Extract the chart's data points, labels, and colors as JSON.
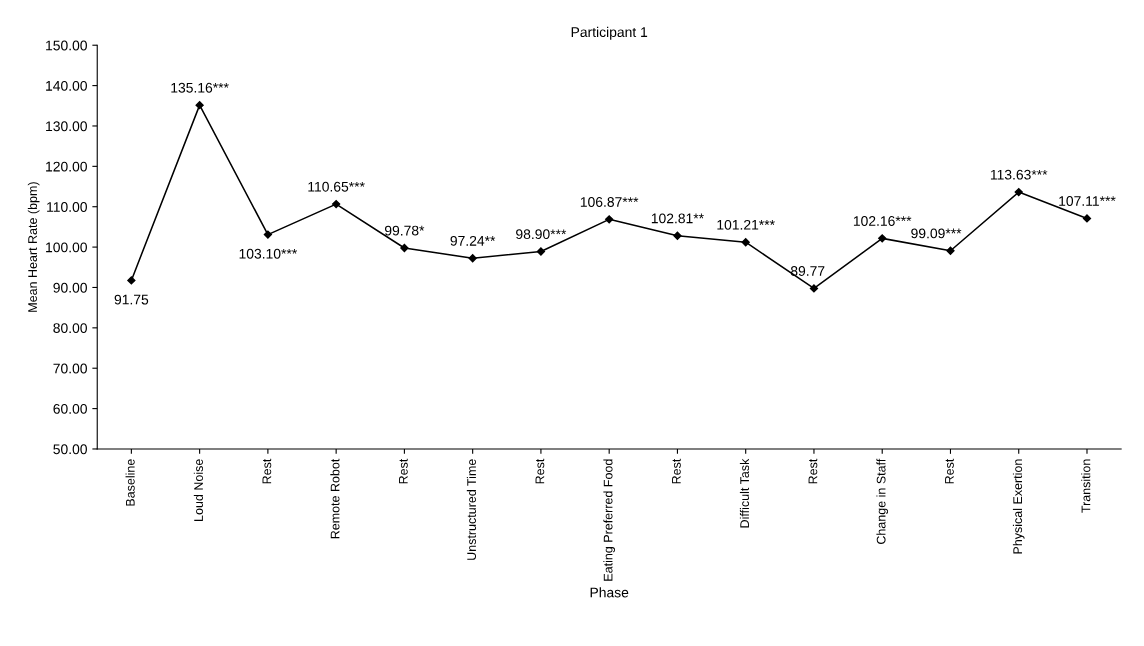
{
  "chart_data": {
    "type": "line",
    "title": "Participant 1",
    "xlabel": "Phase",
    "ylabel": "Mean Heart Rate (bpm)",
    "categories": [
      "Baseline",
      "Loud Noise",
      "Rest",
      "Remote Robot",
      "Rest",
      "Unstructured Time",
      "Rest",
      "Eating Preferred Food",
      "Rest",
      "Difficult Task",
      "Rest",
      "Change in Staff",
      "Rest",
      "Physical Exertion",
      "Transition"
    ],
    "series": [
      {
        "color": "#000000",
        "values": [
          91.75,
          135.16,
          103.1,
          110.65,
          99.78,
          97.24,
          98.9,
          106.87,
          102.81,
          101.21,
          89.77,
          102.16,
          99.09,
          113.63,
          107.11
        ],
        "value_labels": [
          "91.75",
          "135.16***",
          "103.10***",
          "110.65***",
          "99.78*",
          "97.24**",
          "98.90***",
          "106.87***",
          "102.81**",
          "101.21***",
          "89.77",
          "102.16***",
          "99.09***",
          "113.63***",
          "107.11***"
        ]
      }
    ],
    "ylim": [
      50,
      150
    ],
    "yticks": [
      {
        "value": 50,
        "label": "50.00"
      },
      {
        "value": 60,
        "label": "60.00"
      },
      {
        "value": 70,
        "label": "70.00"
      },
      {
        "value": 80,
        "label": "80.00"
      },
      {
        "value": 90,
        "label": "90.00"
      },
      {
        "value": 100,
        "label": "100.00"
      },
      {
        "value": 110,
        "label": "110.00"
      },
      {
        "value": 120,
        "label": "120.00"
      },
      {
        "value": 130,
        "label": "130.00"
      },
      {
        "value": 140,
        "label": "140.00"
      },
      {
        "value": 150,
        "label": "150.00"
      }
    ],
    "marker": "diamond",
    "line_style": "solid",
    "grid": false,
    "legend": false
  }
}
